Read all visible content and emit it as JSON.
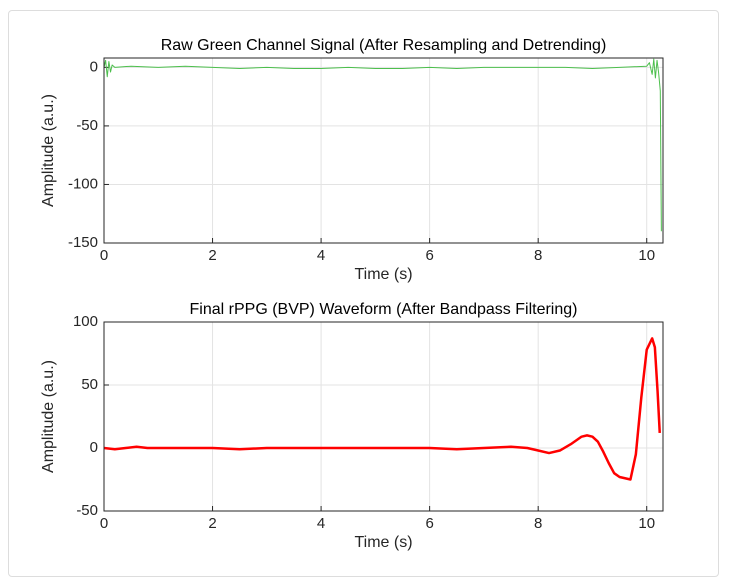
{
  "chart_data": [
    {
      "type": "line",
      "title": "Raw Green Channel Signal (After Resampling and Detrending)",
      "xlabel": "Time (s)",
      "ylabel": "Amplitude (a.u.)",
      "x": [
        0,
        0.03,
        0.06,
        0.09,
        0.12,
        0.15,
        0.2,
        0.5,
        1,
        1.5,
        2,
        2.5,
        3,
        3.5,
        4,
        4.5,
        5,
        5.5,
        6,
        6.5,
        7,
        7.5,
        8,
        8.5,
        9,
        9.5,
        10,
        10.05,
        10.1,
        10.13,
        10.16,
        10.19,
        10.22,
        10.25,
        10.27
      ],
      "values": [
        0,
        6,
        -8,
        5,
        -4,
        2,
        0,
        1,
        0,
        1,
        0,
        -1,
        0,
        -1,
        -1,
        0,
        -1,
        -1,
        0,
        -1,
        0,
        0,
        0,
        0,
        -1,
        0,
        1,
        4,
        -6,
        7,
        -9,
        6,
        -5,
        -20,
        -140
      ],
      "color": "#4dbf4d",
      "line_width": 1,
      "xlim": [
        0,
        10.3
      ],
      "ylim": [
        -150,
        8
      ],
      "xticks": [
        0,
        2,
        4,
        6,
        8,
        10
      ],
      "yticks": [
        -150,
        -100,
        -50,
        0
      ],
      "grid": true
    },
    {
      "type": "line",
      "title": "Final rPPG (BVP) Waveform (After Bandpass Filtering)",
      "xlabel": "Time (s)",
      "ylabel": "Amplitude (a.u.)",
      "x": [
        0,
        0.2,
        0.4,
        0.6,
        0.8,
        1,
        1.5,
        2,
        2.5,
        3,
        3.5,
        4,
        4.5,
        5,
        5.5,
        6,
        6.5,
        7,
        7.5,
        7.8,
        8,
        8.2,
        8.4,
        8.6,
        8.8,
        8.9,
        9.0,
        9.1,
        9.2,
        9.3,
        9.4,
        9.5,
        9.6,
        9.7,
        9.8,
        9.9,
        10.0,
        10.1,
        10.15,
        10.2,
        10.24
      ],
      "values": [
        0,
        -1,
        0,
        1,
        0,
        0,
        0,
        0,
        -1,
        0,
        0,
        0,
        0,
        0,
        0,
        0,
        -1,
        0,
        1,
        0,
        -2,
        -4,
        -2,
        3,
        9,
        10,
        9,
        5,
        -3,
        -12,
        -20,
        -23,
        -24,
        -25,
        -5,
        40,
        78,
        87,
        80,
        45,
        12
      ],
      "color": "#ff0000",
      "line_width": 2.5,
      "xlim": [
        0,
        10.3
      ],
      "ylim": [
        -50,
        100
      ],
      "xticks": [
        0,
        2,
        4,
        6,
        8,
        10
      ],
      "yticks": [
        -50,
        0,
        50,
        100
      ],
      "grid": true
    }
  ]
}
